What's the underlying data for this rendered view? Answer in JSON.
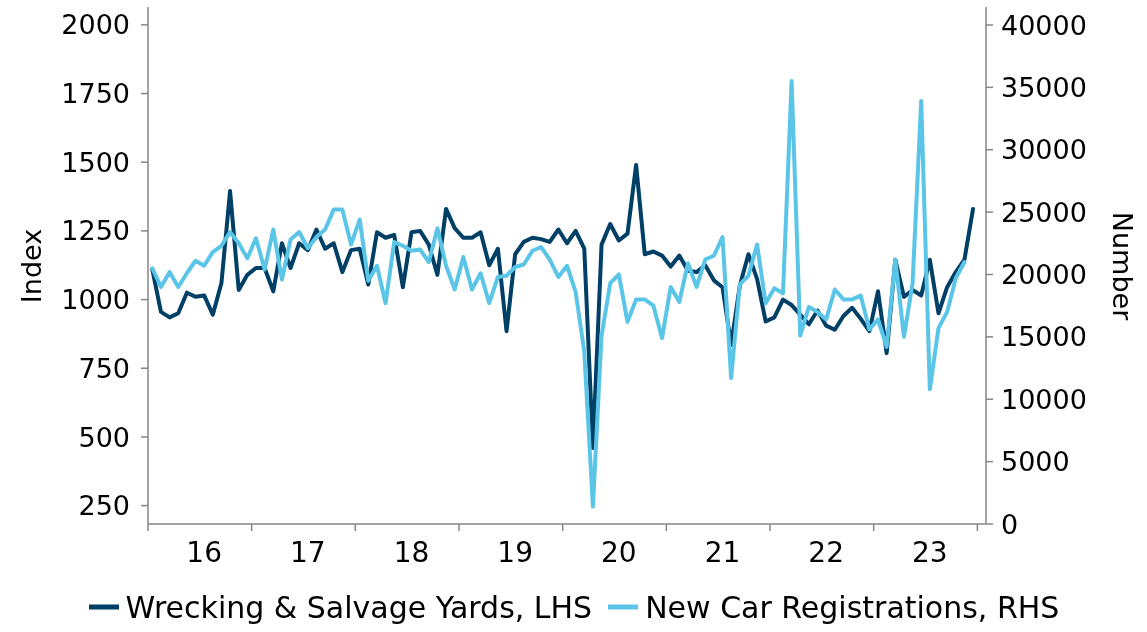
{
  "chart_data": {
    "type": "line",
    "ylabel": "Index",
    "y2label": "Number",
    "categories": [
      null,
      null,
      null,
      null,
      null,
      null,
      "16",
      null,
      null,
      null,
      null,
      null,
      null,
      null,
      null,
      null,
      null,
      null,
      "17",
      null,
      null,
      null,
      null,
      null,
      null,
      null,
      null,
      null,
      null,
      null,
      "18",
      null,
      null,
      null,
      null,
      null,
      null,
      null,
      null,
      null,
      null,
      null,
      "19",
      null,
      null,
      null,
      null,
      null,
      null,
      null,
      null,
      null,
      null,
      null,
      "20",
      null,
      null,
      null,
      null,
      null,
      null,
      null,
      null,
      null,
      null,
      null,
      "21",
      null,
      null,
      null,
      null,
      null,
      null,
      null,
      null,
      null,
      null,
      null,
      "22",
      null,
      null,
      null,
      null,
      null,
      null,
      null,
      null,
      null,
      null,
      null,
      "23",
      null,
      null,
      null,
      null,
      null,
      null
    ],
    "series": [
      {
        "name": "Wrecking & Salvage Yards, LHS",
        "color": "#003f66",
        "values": [
          1110,
          955,
          935,
          950,
          1025,
          1010,
          1015,
          945,
          1060,
          1395,
          1035,
          1090,
          1115,
          1115,
          1030,
          1205,
          1115,
          1205,
          1180,
          1255,
          1185,
          1205,
          1100,
          1180,
          1185,
          1055,
          1245,
          1225,
          1235,
          1045,
          1245,
          1250,
          1200,
          1090,
          1330,
          1260,
          1225,
          1225,
          1245,
          1125,
          1185,
          885,
          1165,
          1210,
          1225,
          1220,
          1210,
          1255,
          1205,
          1250,
          1185,
          460,
          1200,
          1275,
          1215,
          1240,
          1490,
          1165,
          1175,
          1160,
          1120,
          1160,
          1105,
          1100,
          1125,
          1070,
          1045,
          835,
          1050,
          1165,
          1075,
          920,
          935,
          1000,
          980,
          945,
          910,
          960,
          905,
          890,
          940,
          970,
          930,
          885,
          1030,
          805,
          1145,
          1010,
          1035,
          1015,
          1145,
          950,
          1045,
          1100,
          1145,
          1330,
          null
        ]
      },
      {
        "name": "New Car Registrations, RHS",
        "color": "#5bc5e8",
        "axis": "y2",
        "values": [
          20500,
          19000,
          20200,
          19000,
          20100,
          21100,
          20700,
          21800,
          22300,
          23400,
          22500,
          21300,
          22900,
          20400,
          23600,
          19600,
          22800,
          23400,
          22100,
          23000,
          23600,
          25200,
          25200,
          22400,
          24400,
          19500,
          20700,
          17700,
          22600,
          22300,
          21900,
          22000,
          21000,
          23700,
          20700,
          18800,
          21400,
          18800,
          20100,
          17700,
          19800,
          19900,
          20600,
          20800,
          21900,
          22200,
          21200,
          19800,
          20700,
          18600,
          13800,
          1400,
          15100,
          19300,
          20000,
          16200,
          18000,
          18000,
          17500,
          14900,
          19000,
          17800,
          20900,
          19000,
          21200,
          21500,
          23000,
          11700,
          19200,
          19900,
          22400,
          17700,
          18900,
          18500,
          35500,
          15100,
          17400,
          17000,
          16400,
          18800,
          18000,
          18000,
          18300,
          15600,
          16400,
          14200,
          21200,
          15000,
          19300,
          33900,
          10800,
          15700,
          17000,
          19700,
          21000,
          null,
          null
        ]
      }
    ],
    "ylim": [
      183,
      2065
    ],
    "yticks": [
      250,
      500,
      750,
      1000,
      1250,
      1500,
      1750,
      2000
    ],
    "y2lim": [
      0,
      41440
    ],
    "y2ticks": [
      0,
      5000,
      10000,
      15000,
      20000,
      25000,
      30000,
      35000,
      40000
    ],
    "grid": false,
    "legend": "bottom",
    "marker": "none",
    "line_style": "solid"
  }
}
